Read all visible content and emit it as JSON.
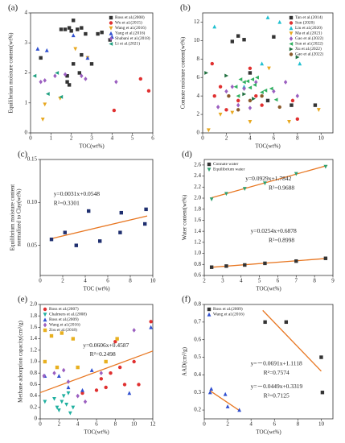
{
  "chart_data": [
    {
      "type": "scatter",
      "title": "(a)",
      "ylabel": "Equilibrium moisture content(wt%)",
      "xlabel": "TOC(wt%)",
      "xlim": [
        0,
        6
      ],
      "xticks": [
        0,
        1,
        2,
        3,
        4,
        5,
        6
      ],
      "ylim": [
        0,
        4
      ],
      "yticks": [
        0,
        1,
        2,
        3,
        4
      ],
      "legend": "upper right",
      "series": [
        {
          "name": "Ross et al.(2008)",
          "color": "#333333",
          "marker": "square",
          "x": [
            0.5,
            1.5,
            1.7,
            1.9,
            2.1,
            2.0,
            2.3,
            2.5,
            2.7,
            3.3,
            3.5,
            3.9,
            1.8,
            1.8,
            2.1,
            2.5,
            3.0,
            2.4,
            1.9
          ],
          "values": [
            2.5,
            3.45,
            3.45,
            3.5,
            3.75,
            3.4,
            3.45,
            3.5,
            3.3,
            3.3,
            3.35,
            3.1,
            1.9,
            1.7,
            2.3,
            2.6,
            2.3,
            2.0,
            1.6
          ]
        },
        {
          "name": "Wu et al.(2015)",
          "color": "#e03030",
          "marker": "circle",
          "x": [
            4.1,
            5.4,
            5.8
          ],
          "values": [
            0.75,
            1.8,
            1.4
          ]
        },
        {
          "name": "Wang et al.(2016)",
          "color": "#e8a820",
          "marker": "triangle-down",
          "x": [
            0.6,
            0.7,
            1.45,
            2.2,
            2.8
          ],
          "values": [
            0.45,
            0.95,
            1.15,
            2.8,
            2.5
          ]
        },
        {
          "name": "Yang et al.(2016)",
          "color": "#3050d0",
          "marker": "triangle",
          "x": [
            0.35,
            0.8,
            2.1,
            2.8,
            4.0
          ],
          "values": [
            2.8,
            2.75,
            3.25,
            2.5,
            3.2
          ]
        },
        {
          "name": "Shabani et al.(2018)",
          "color": "#9b5fc0",
          "marker": "diamond",
          "x": [
            0.5,
            0.7,
            1.2,
            1.7,
            2.5,
            2.7,
            4.2
          ],
          "values": [
            1.7,
            1.75,
            1.9,
            1.95,
            1.9,
            1.8,
            1.7
          ]
        },
        {
          "name": "Li et al.(2021)",
          "color": "#20a080",
          "marker": "triangle-left",
          "x": [
            0.2,
            0.85,
            1.3,
            1.5
          ],
          "values": [
            1.9,
            1.3,
            2.0,
            1.2
          ]
        }
      ]
    },
    {
      "type": "scatter",
      "title": "(b)",
      "ylabel": "Connate moisture content(wt%)",
      "xlabel": "TOC(wt%)",
      "xlim": [
        0,
        11
      ],
      "xticks": [
        0,
        2,
        4,
        6,
        8,
        10
      ],
      "ylim": [
        0,
        13
      ],
      "yticks": [
        0,
        2,
        4,
        6,
        8,
        10,
        12
      ],
      "legend": "upper right",
      "series": [
        {
          "name": "Tan et al.(2014)",
          "color": "#333333",
          "marker": "square",
          "x": [
            2.5,
            3.0,
            3.5,
            4.0,
            5.5,
            6.0,
            7.5,
            9.5
          ],
          "values": [
            9.9,
            10.5,
            10.1,
            6.5,
            3.5,
            10.4,
            3.0,
            3.0
          ]
        },
        {
          "name": "Sun (2020)",
          "color": "#e03030",
          "marker": "circle",
          "x": [
            0.8,
            1.5,
            2.0,
            3.0,
            4.0,
            4.5,
            5.0,
            7.6,
            8.0,
            1.0
          ],
          "values": [
            7.5,
            5.0,
            2.5,
            3.5,
            7.0,
            4.0,
            3.0,
            3.5,
            1.5,
            4.0
          ]
        },
        {
          "name": "Liu et al.(2020)",
          "color": "#20c0d0",
          "marker": "triangle",
          "x": [
            1.0,
            3.5,
            5.5,
            6.5,
            5.0,
            8.2
          ],
          "values": [
            11.5,
            5.0,
            12.5,
            12.0,
            7.5,
            7.5
          ]
        },
        {
          "name": "Ma et al.(2021)",
          "color": "#e8a820",
          "marker": "triangle-down",
          "x": [
            0.5,
            1.5,
            2.5,
            4.0,
            5.6,
            7.3,
            9.8
          ],
          "values": [
            0.3,
            2.0,
            2.2,
            1.2,
            7.0,
            1.2,
            2.5
          ]
        },
        {
          "name": "Gao et al.(2022)",
          "color": "#9b5fc0",
          "marker": "diamond",
          "x": [
            1.3,
            2.0,
            2.5,
            3.0,
            3.5,
            4.0,
            4.5,
            6.0,
            7.0,
            8.0
          ],
          "values": [
            2.8,
            4.5,
            5.0,
            3.0,
            4.8,
            2.7,
            5.5,
            4.5,
            5.5,
            4.0
          ]
        },
        {
          "name": "Sun et al.(2022)",
          "color": "#30b060",
          "marker": "triangle-left",
          "x": [
            3.0,
            3.2,
            3.5,
            3.8,
            4.0,
            4.2,
            4.4,
            4.6,
            5.0,
            5.3,
            5.8,
            6.2,
            2.8
          ],
          "values": [
            4.0,
            5.8,
            5.5,
            5.6,
            4.9,
            5.8,
            5.2,
            6.0,
            4.4,
            4.6,
            4.8,
            3.6,
            5.0
          ]
        },
        {
          "name": "Xu et al.(2022)",
          "color": "#1f6f3f",
          "marker": "triangle-right",
          "x": [
            0.3,
            2.0,
            3.5,
            8.0,
            4.3
          ],
          "values": [
            6.5,
            6.2,
            4.2,
            8.2,
            3.7
          ]
        },
        {
          "name": "Gao et al.(2022)",
          "color": "#8b5a2b",
          "marker": "circle",
          "x": [
            2.2,
            3.0,
            4.0,
            5.0,
            6.5
          ],
          "values": [
            4.0,
            2.5,
            3.5,
            4.0,
            2.8
          ]
        }
      ]
    },
    {
      "type": "scatter",
      "title": "(c)",
      "ylabel": [
        "Equilibrium moisture content",
        "normalized to Clay(wt%)"
      ],
      "xlabel": "TOC (wt%)",
      "xlim": [
        0,
        10
      ],
      "xticks": [
        0,
        2,
        4,
        6,
        8,
        10
      ],
      "ylim": [
        0.015,
        0.15
      ],
      "yticks": [
        0.05,
        {
          "value": 0.1,
          "label": "0.10"
        },
        0.15
      ],
      "series": [
        {
          "color": "#1f2f6f",
          "marker": "square",
          "x": [
            1.0,
            2.2,
            3.2,
            4.3,
            5.3,
            7.1,
            7.2,
            9.3,
            9.4
          ],
          "values": [
            0.057,
            0.065,
            0.05,
            0.09,
            0.055,
            0.065,
            0.088,
            0.075,
            0.092
          ]
        }
      ],
      "trendlines": [
        {
          "color": "#e87722",
          "x": [
            1,
            9.5
          ],
          "values": [
            0.0579,
            0.0843
          ]
        }
      ],
      "annotations": [
        "y=0.0031x+0.0548",
        "R²=0.3301"
      ]
    },
    {
      "type": "scatter",
      "title": "(d)",
      "ylabel": "Water content(wt%)",
      "xlabel": "TOC(wt%)",
      "xlim": [
        2,
        9
      ],
      "xticks": [
        2,
        3,
        4,
        5,
        6,
        7,
        8,
        9
      ],
      "ylim": [
        0.6,
        2.7
      ],
      "yticks": [
        0.6,
        0.8,
        {
          "value": 1,
          "label": "1.0"
        },
        1.2,
        1.4,
        1.6,
        1.8,
        {
          "value": 2,
          "label": "2.0"
        },
        2.2,
        2.4,
        2.6
      ],
      "legend": "upper left",
      "series": [
        {
          "name": "Connate water",
          "color": "#333333",
          "marker": "square",
          "x": [
            2.4,
            3.2,
            4.2,
            5.3,
            7.0,
            8.6
          ],
          "values": [
            0.75,
            0.77,
            0.79,
            0.82,
            0.86,
            0.91
          ]
        },
        {
          "name": "Equilibrium water",
          "color": "#30a070",
          "marker": "triangle-down",
          "x": [
            2.4,
            3.2,
            4.2,
            5.3,
            7.0,
            8.6
          ],
          "values": [
            1.98,
            2.08,
            2.17,
            2.27,
            2.44,
            2.57
          ]
        }
      ],
      "trendlines": [
        {
          "color": "#e87722",
          "x": [
            2.4,
            8.7
          ],
          "values": [
            2.0072,
            2.5924
          ]
        },
        {
          "color": "#e87722",
          "x": [
            2.4,
            8.7
          ],
          "values": [
            0.7488,
            0.9088
          ]
        }
      ],
      "annotations": [
        "y=0.0929x+1.7842",
        "R²=0.9688",
        "y=0.0254x+0.6878",
        "R²=0.8998"
      ]
    },
    {
      "type": "scatter",
      "title": "(e)",
      "ylabel": "Methane adsorption capacity(cm³/g)",
      "xlabel": "TOC(wt%)",
      "xlim": [
        0,
        12
      ],
      "xticks": [
        0,
        2,
        4,
        6,
        8,
        10,
        12
      ],
      "ylim": [
        0,
        2
      ],
      "yticks": [
        0,
        0.2,
        0.4,
        0.6,
        0.8,
        {
          "value": 1,
          "label": "1.0"
        },
        1.2,
        1.4,
        1.6,
        1.8,
        {
          "value": 2,
          "label": "2.0"
        }
      ],
      "legend": "upper left",
      "series": [
        {
          "name": "Ross et al.(2007)",
          "color": "#e03030",
          "marker": "circle",
          "x": [
            4.5,
            6.0,
            6.5,
            7.0,
            7.5,
            8.0,
            8.5,
            9.0,
            10.0,
            10.5,
            11.8
          ],
          "values": [
            0.45,
            0.5,
            0.7,
            0.55,
            0.8,
            1.35,
            0.9,
            0.6,
            1.0,
            0.6,
            1.7
          ]
        },
        {
          "name": "Chalmers et al.(2008)",
          "color": "#20b0a0",
          "marker": "triangle-down",
          "x": [
            0.5,
            1.5,
            2.0,
            2.3,
            2.8,
            3.0,
            3.2,
            3.5,
            2.5,
            1.8
          ],
          "values": [
            0.3,
            0.35,
            0.15,
            0.3,
            0.25,
            0.45,
            0.1,
            0.2,
            0.4,
            0.2
          ]
        },
        {
          "name": "Ross et al.(2009)",
          "color": "#3050d0",
          "marker": "triangle",
          "x": [
            0.5,
            2.0,
            3.0,
            4.5,
            5.5,
            9.5,
            11.8
          ],
          "values": [
            0.75,
            0.75,
            0.55,
            0.5,
            0.85,
            0.45,
            1.6
          ]
        },
        {
          "name": "Wang et al.(2016)",
          "color": "#9b5fc0",
          "marker": "diamond",
          "x": [
            0.4,
            1.5,
            2.5,
            3.0,
            4.0,
            4.8,
            6.5,
            10.0
          ],
          "values": [
            0.75,
            0.8,
            0.85,
            0.65,
            0.4,
            0.3,
            0.8,
            1.55
          ]
        },
        {
          "name": "Zou et al.(2018)",
          "color": "#e8b020",
          "marker": "square",
          "x": [
            0.5,
            1.2,
            1.8,
            2.3,
            3.5,
            4.0,
            7.0,
            8.2
          ],
          "values": [
            1.0,
            1.45,
            0.9,
            1.5,
            1.4,
            0.9,
            1.0,
            1.4
          ]
        }
      ],
      "trendlines": [
        {
          "color": "#e87722",
          "x": [
            0,
            12
          ],
          "values": [
            0.4587,
            1.1859
          ]
        }
      ],
      "annotations": [
        "y=0.0606x+0.4587",
        "R²=0.2498"
      ]
    },
    {
      "type": "scatter",
      "title": "(f)",
      "ylabel": "AAD(cm³/g)",
      "xlabel": "TOC(wt%)",
      "xlim": [
        0,
        11
      ],
      "xticks": [
        0,
        2,
        4,
        6,
        8,
        10
      ],
      "ylim": [
        0.15,
        0.8
      ],
      "yticks": [
        0.2,
        0.3,
        0.4,
        0.5,
        0.6,
        0.7,
        0.8
      ],
      "legend": "upper left",
      "series": [
        {
          "name": "Ross et al.(2009)",
          "color": "#333333",
          "marker": "square",
          "x": [
            5.2,
            7.0,
            10.0,
            10.1
          ],
          "values": [
            0.7,
            0.7,
            0.5,
            0.3
          ]
        },
        {
          "name": "Wang et al.(2016)",
          "color": "#3050d0",
          "marker": "triangle",
          "x": [
            0.5,
            0.6,
            1.8,
            2.0,
            3.0
          ],
          "values": [
            0.3,
            0.32,
            0.29,
            0.22,
            0.2
          ]
        }
      ],
      "trendlines": [
        {
          "color": "#e87722",
          "x": [
            5,
            10
          ],
          "values": [
            0.7663,
            0.4208
          ]
        },
        {
          "color": "#e87722",
          "x": [
            0.5,
            3
          ],
          "values": [
            0.3095,
            0.1972
          ]
        }
      ],
      "annotations": [
        "y=－0.0691x+1.1118",
        "R²=0.7574",
        "y=－0.0449x+0.3319",
        "R²=0.7125"
      ]
    }
  ]
}
